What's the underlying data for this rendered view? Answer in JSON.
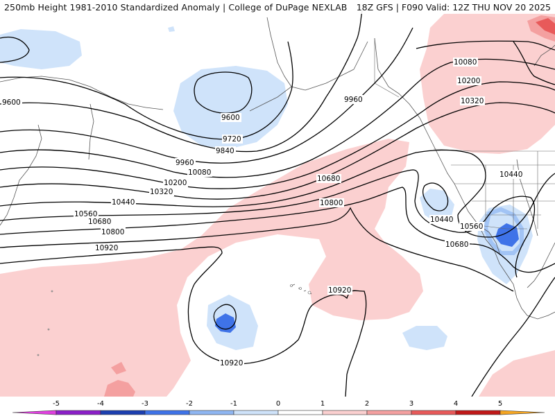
{
  "header": {
    "title": "250mb Height 1981-2010 Standardized Anomaly | College of DuPage NEXLAB",
    "run_info": "18Z GFS | F090 Valid: 12Z THU NOV 20 2025"
  },
  "contour_labels": [
    {
      "id": "label-9600-west",
      "text": "9600"
    },
    {
      "id": "label-9600-low",
      "text": "9600"
    },
    {
      "id": "label-9720",
      "text": "9720"
    },
    {
      "id": "label-9840",
      "text": "9840"
    },
    {
      "id": "label-9960-west",
      "text": "9960"
    },
    {
      "id": "label-9960-east",
      "text": "9960"
    },
    {
      "id": "label-10080-west",
      "text": "10080"
    },
    {
      "id": "label-10080-east",
      "text": "10080"
    },
    {
      "id": "label-10200-west",
      "text": "10200"
    },
    {
      "id": "label-10200-east",
      "text": "10200"
    },
    {
      "id": "label-10320-west",
      "text": "10320"
    },
    {
      "id": "label-10320-east",
      "text": "10320"
    },
    {
      "id": "label-10440-west",
      "text": "10440"
    },
    {
      "id": "label-10440-east",
      "text": "10440"
    },
    {
      "id": "label-10440-low",
      "text": "10440"
    },
    {
      "id": "label-10560-west",
      "text": "10560"
    },
    {
      "id": "label-10560-east",
      "text": "10560"
    },
    {
      "id": "label-10680-west",
      "text": "10680"
    },
    {
      "id": "label-10680-mid",
      "text": "10680"
    },
    {
      "id": "label-10680-east",
      "text": "10680"
    },
    {
      "id": "label-10800-west",
      "text": "10800"
    },
    {
      "id": "label-10800-mid",
      "text": "10800"
    },
    {
      "id": "label-10920-west",
      "text": "10920"
    },
    {
      "id": "label-10920-mid",
      "text": "10920"
    },
    {
      "id": "label-10920-low",
      "text": "10920"
    }
  ],
  "legend": {
    "ticks": [
      "-5",
      "-4",
      "-3",
      "-2",
      "-1",
      "0",
      "1",
      "2",
      "3",
      "4",
      "5"
    ],
    "colors": [
      "#e040e0",
      "#8b1fc8",
      "#1c3fb0",
      "#3f73e8",
      "#8fb6f2",
      "#cfe3fa",
      "#ffffff",
      "#fbd0d0",
      "#f4a0a0",
      "#e85a5a",
      "#c01818",
      "#f5a623"
    ]
  }
}
